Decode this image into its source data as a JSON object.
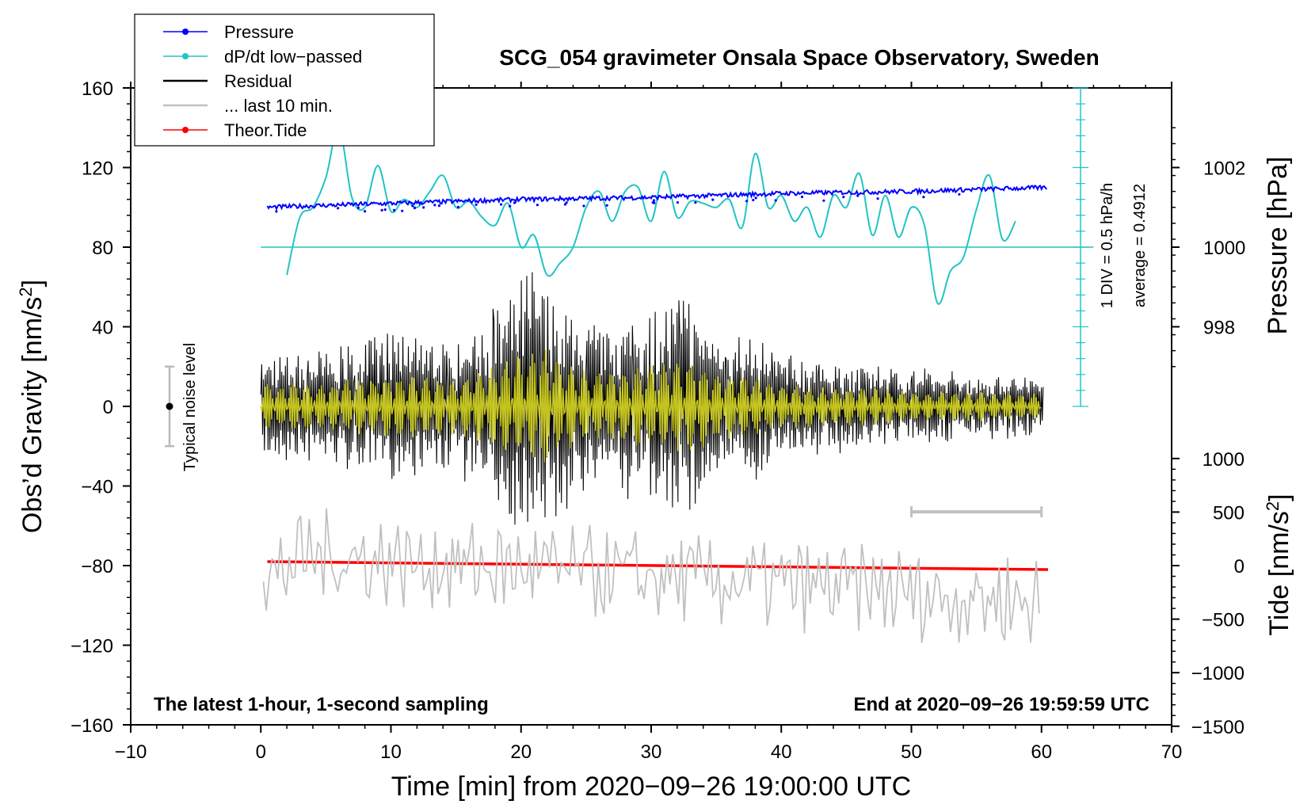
{
  "chart_data": {
    "type": "line",
    "title": "SCG_054 gravimeter Onsala Space Observatory, Sweden",
    "xlabel": "Time [min] from 2020−09−26 19:00:00 UTC",
    "ylabel": "Obs’d Gravity [nm/s",
    "ylabel_sup": "2",
    "ylabel_end": "]",
    "right_top_label": "Pressure [hPa]",
    "right_bottom_label": "Tide [nm/s",
    "right_bottom_label_sup": "2",
    "right_bottom_label_end": "]",
    "xlim": [
      -10,
      70
    ],
    "ylim": [
      -160,
      160
    ],
    "x_ticks": [
      "−10",
      "0",
      "10",
      "20",
      "30",
      "40",
      "50",
      "60",
      "70"
    ],
    "x_tick_values": [
      -10,
      0,
      10,
      20,
      30,
      40,
      50,
      60,
      70
    ],
    "y_ticks": [
      "160",
      "120",
      "80",
      "40",
      "0",
      "−40",
      "−80",
      "−120",
      "−160"
    ],
    "y_tick_values": [
      160,
      120,
      80,
      40,
      0,
      -40,
      -80,
      -120,
      -160
    ],
    "pressure_axis": {
      "ticks": [
        "1002",
        "1000",
        "998"
      ],
      "values": [
        1002,
        1000,
        998
      ],
      "gravity_ref": [
        120,
        80,
        40
      ]
    },
    "tide_axis": {
      "ticks": [
        "1000",
        "500",
        "0",
        "−500",
        "−1000",
        "−1500"
      ],
      "values": [
        1000,
        500,
        0,
        -500,
        -1000,
        -1500
      ]
    },
    "legend": [
      {
        "label": "Pressure",
        "color": "#0000ff",
        "marker": true
      },
      {
        "label": "dP/dt low−passed",
        "color": "#22c4c4",
        "marker": true
      },
      {
        "label": "Residual",
        "color": "#000000",
        "marker": false
      },
      {
        "label": "... last 10 min.",
        "color": "#c0c0c0",
        "marker": false
      },
      {
        "label": "Theor.Tide",
        "color": "#ff0000",
        "marker": true
      }
    ],
    "annotations": {
      "noise_level": "Typical noise level",
      "noise_range": [
        -20,
        20
      ],
      "div_label": "1 DIV = 0.5 hPa/h",
      "average_label": "average = 0.4912",
      "dpdt_baseline_gravity": 80,
      "bottom_left": "The latest 1-hour, 1-second sampling",
      "bottom_right": "End at 2020−09−26 19:59:59 UTC",
      "last10_bar_minutes": [
        50,
        60
      ]
    },
    "series": [
      {
        "name": "Pressure",
        "color": "#0000ff",
        "x": [
          0.5,
          5,
          10,
          15,
          20,
          25,
          30,
          35,
          40,
          45,
          50,
          55,
          60.5
        ],
        "y": [
          100,
          101,
          102,
          103,
          104,
          104.5,
          105,
          106,
          107,
          107.5,
          108,
          109,
          110
        ]
      },
      {
        "name": "dP/dt low−passed",
        "color": "#22c4c4",
        "x": [
          2,
          3,
          4,
          5,
          6,
          7,
          8,
          9,
          10,
          11,
          12,
          13,
          14,
          15,
          16,
          17,
          18,
          19,
          20,
          21,
          22,
          23,
          24,
          25,
          26,
          27,
          28,
          29,
          30,
          31,
          32,
          33,
          34,
          35,
          36,
          37,
          38,
          39,
          40,
          41,
          42,
          43,
          44,
          45,
          46,
          47,
          48,
          49,
          50,
          51,
          52,
          53,
          54,
          55,
          56,
          57,
          58
        ],
        "y": [
          66,
          95,
          100,
          115,
          140,
          105,
          100,
          121,
          98,
          104,
          100,
          108,
          116,
          100,
          103,
          95,
          91,
          102,
          80,
          86,
          66,
          72,
          80,
          100,
          108,
          93,
          108,
          110,
          93,
          118,
          95,
          103,
          102,
          100,
          104,
          90,
          127,
          100,
          106,
          93,
          100,
          85,
          106,
          100,
          117,
          86,
          106,
          85,
          100,
          91,
          52,
          68,
          75,
          99,
          116,
          84,
          93
        ]
      },
      {
        "name": "Residual",
        "color": "#000000",
        "x": [
          0,
          5,
          10,
          15,
          20,
          21,
          25,
          30,
          33,
          35,
          38,
          40,
          45,
          50,
          55,
          60
        ],
        "amplitude": [
          28,
          30,
          40,
          34,
          65,
          75,
          44,
          50,
          60,
          42,
          38,
          28,
          24,
          20,
          18,
          16
        ]
      },
      {
        "name": "... last 10 min.",
        "color": "#c0c0c0",
        "x": [
          0.2,
          3.5,
          60
        ],
        "y": [
          -88,
          -75,
          -98
        ],
        "spread": 25
      },
      {
        "name": "Theor.Tide",
        "color": "#ff0000",
        "x": [
          0.5,
          60.5
        ],
        "y": [
          -78,
          -82
        ]
      }
    ]
  }
}
